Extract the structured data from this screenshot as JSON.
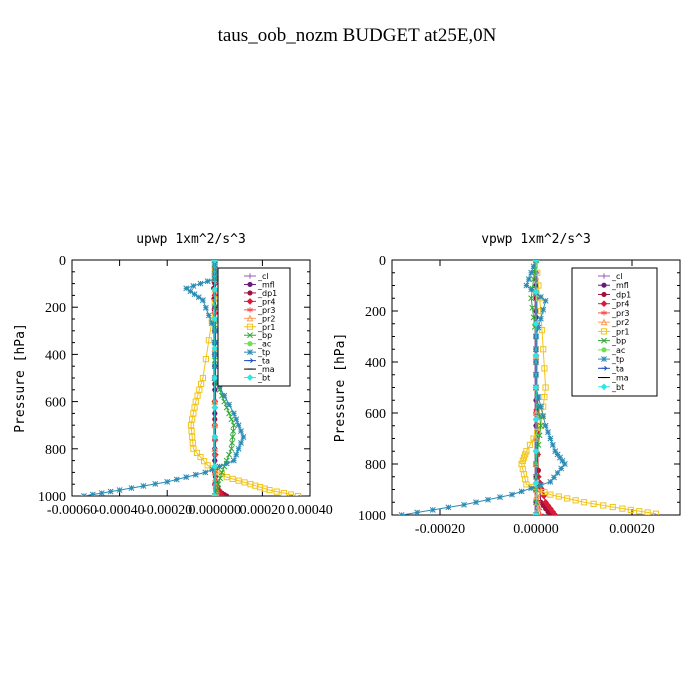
{
  "figure": {
    "title": "taus_oob_nozm  BUDGET at25E,0N"
  },
  "chart_data": [
    {
      "type": "line",
      "title": "upwp   1xm^2/s^3",
      "ylabel": "Pressure [hPa]",
      "xlabel": "",
      "ylim": [
        1000,
        0
      ],
      "xlim": [
        -0.0006,
        0.0004
      ],
      "xticks": [
        -0.0006,
        -0.0004,
        -0.0002,
        0.0,
        0.0002,
        0.0004
      ],
      "xtick_labels": [
        "-0.00060",
        "-0.00040",
        "-0.00020",
        "0.000000",
        "0.00020",
        "0.00040"
      ],
      "yticks": [
        0,
        200,
        400,
        600,
        800,
        1000
      ],
      "ytick_labels": [
        "0",
        "200",
        "400",
        "600",
        "800",
        "1000"
      ],
      "legend_position": "top-right",
      "series": [
        {
          "name": "_cl",
          "color": "#9b59b6",
          "marker": "plus",
          "x": [
            0.0,
            0.0,
            0.0,
            0.0,
            0.0,
            0.0
          ],
          "y": [
            0,
            200,
            400,
            600,
            800,
            1000
          ]
        },
        {
          "name": "_mfl",
          "color": "#6a1b7a",
          "marker": "dot",
          "x": [
            0.0,
            0.0,
            0.0,
            0.0,
            0.0,
            0.0
          ],
          "y": [
            0,
            200,
            400,
            600,
            800,
            1000
          ]
        },
        {
          "name": "_dp1",
          "color": "#a0103c",
          "marker": "dot",
          "x": [
            0.0,
            -5e-06,
            0.0,
            0.0,
            0.0,
            1e-05,
            5e-05
          ],
          "y": [
            0,
            120,
            300,
            600,
            900,
            975,
            1000
          ]
        },
        {
          "name": "_pr4",
          "color": "#d81b3a",
          "marker": "diamond",
          "x": [
            0.0,
            0.0,
            0.0,
            5e-06,
            3e-05
          ],
          "y": [
            0,
            300,
            700,
            950,
            1000
          ]
        },
        {
          "name": "_pr3",
          "color": "#ff4f4f",
          "marker": "star",
          "x": [
            0.0,
            0.0,
            0.0,
            0.0,
            1e-05
          ],
          "y": [
            0,
            300,
            700,
            950,
            1000
          ]
        },
        {
          "name": "_pr2",
          "color": "#ff9a5a",
          "marker": "triangle",
          "x": [
            0.0,
            0.0,
            0.0,
            1e-05
          ],
          "y": [
            0,
            500,
            900,
            1000
          ]
        },
        {
          "name": "_pr1",
          "color": "#f2c418",
          "marker": "square",
          "x": [
            0.0,
            0.0,
            6e-05,
            0.0,
            -5e-05,
            -8e-05,
            -0.0001,
            -9e-05,
            -3e-05,
            5e-05,
            0.00015,
            0.00023,
            0.00035
          ],
          "y": [
            0,
            80,
            120,
            180,
            500,
            600,
            700,
            800,
            870,
            920,
            950,
            975,
            1000
          ]
        },
        {
          "name": "_bp",
          "color": "#2ea836",
          "marker": "cross",
          "x": [
            0.0,
            0.0,
            8e-05,
            0.0,
            0.0,
            4e-05,
            8e-05,
            7e-05,
            3e-05,
            0.0
          ],
          "y": [
            0,
            80,
            130,
            200,
            500,
            600,
            700,
            800,
            900,
            1000
          ]
        },
        {
          "name": "_ac",
          "color": "#6ee14f",
          "marker": "dot",
          "x": [
            0.0,
            0.0,
            0.0
          ],
          "y": [
            0,
            500,
            1000
          ]
        },
        {
          "name": "_tp",
          "color": "#2a8bb5",
          "marker": "asterisk",
          "x": [
            0.0,
            0.0,
            -0.00012,
            -5e-05,
            0.0,
            0.0,
            8e-05,
            0.00012,
            8e-05,
            -4e-05,
            -0.0002,
            -0.0004,
            -0.00055
          ],
          "y": [
            0,
            80,
            120,
            170,
            300,
            500,
            650,
            750,
            850,
            900,
            940,
            975,
            1000
          ]
        },
        {
          "name": "_ta",
          "color": "#1e4fbf",
          "marker": "arrow",
          "x": [
            0.0,
            0.0,
            0.0
          ],
          "y": [
            0,
            500,
            1000
          ]
        },
        {
          "name": "_ma",
          "color": "#000000",
          "marker": "dash",
          "x": [
            0.0,
            0.0,
            0.0
          ],
          "y": [
            0,
            500,
            1000
          ]
        },
        {
          "name": "_bt",
          "color": "#2ee6e6",
          "marker": "diamond",
          "x": [
            0.0,
            0.0,
            0.0
          ],
          "y": [
            0,
            500,
            1000
          ]
        }
      ]
    },
    {
      "type": "line",
      "title": "vpwp   1xm^2/s^3",
      "ylabel": "Pressure [hPa]",
      "xlabel": "",
      "ylim": [
        1000,
        0
      ],
      "xlim": [
        -0.0003,
        0.0003
      ],
      "xticks": [
        -0.0002,
        0.0,
        0.0002
      ],
      "xtick_labels": [
        "-0.00020",
        "0.00000",
        "0.00020"
      ],
      "yticks": [
        0,
        200,
        400,
        600,
        800,
        1000
      ],
      "ytick_labels": [
        "0",
        "200",
        "400",
        "600",
        "800",
        "1000"
      ],
      "legend_position": "top-right",
      "series": [
        {
          "name": "_cl",
          "color": "#9b59b6",
          "marker": "plus",
          "x": [
            0.0,
            0.0,
            0.0,
            0.0,
            0.0,
            0.0
          ],
          "y": [
            0,
            200,
            400,
            600,
            800,
            1000
          ]
        },
        {
          "name": "_mfl",
          "color": "#6a1b7a",
          "marker": "dot",
          "x": [
            0.0,
            0.0,
            0.0,
            0.0,
            0.0,
            0.0
          ],
          "y": [
            0,
            200,
            400,
            600,
            800,
            1000
          ]
        },
        {
          "name": "_dp1",
          "color": "#a0103c",
          "marker": "dot",
          "x": [
            0.0,
            0.0,
            0.0,
            1e-05,
            3e-05
          ],
          "y": [
            0,
            300,
            700,
            950,
            1000
          ]
        },
        {
          "name": "_pr4",
          "color": "#d81b3a",
          "marker": "diamond",
          "x": [
            0.0,
            0.0,
            5e-06,
            2e-05,
            4e-05
          ],
          "y": [
            0,
            500,
            850,
            950,
            1000
          ]
        },
        {
          "name": "_pr3",
          "color": "#ff4f4f",
          "marker": "star",
          "x": [
            0.0,
            0.0,
            0.0,
            1e-05
          ],
          "y": [
            0,
            500,
            900,
            1000
          ]
        },
        {
          "name": "_pr2",
          "color": "#ff9a5a",
          "marker": "triangle",
          "x": [
            0.0,
            0.0,
            0.0,
            5e-06
          ],
          "y": [
            0,
            500,
            900,
            1000
          ]
        },
        {
          "name": "_pr1",
          "color": "#f2c418",
          "marker": "square",
          "x": [
            0.0,
            1e-05,
            2e-05,
            1e-05,
            -2e-05,
            -3e-05,
            -2e-05,
            3e-05,
            0.0001,
            0.00018,
            0.00025
          ],
          "y": [
            0,
            200,
            500,
            650,
            750,
            800,
            880,
            920,
            950,
            975,
            995
          ]
        },
        {
          "name": "_bp",
          "color": "#2ea836",
          "marker": "cross",
          "x": [
            0.0,
            -1e-05,
            0.0,
            0.0,
            1e-05,
            0.0,
            0.0
          ],
          "y": [
            0,
            150,
            300,
            500,
            650,
            800,
            1000
          ]
        },
        {
          "name": "_ac",
          "color": "#6ee14f",
          "marker": "dot",
          "x": [
            0.0,
            0.0,
            0.0
          ],
          "y": [
            0,
            500,
            1000
          ]
        },
        {
          "name": "_tp",
          "color": "#2a8bb5",
          "marker": "asterisk",
          "x": [
            0.0,
            -2e-05,
            2e-05,
            0.0,
            0.0,
            2e-05,
            4e-05,
            6e-05,
            3e-05,
            -5e-05,
            -0.00015,
            -0.00028
          ],
          "y": [
            0,
            100,
            160,
            300,
            500,
            650,
            750,
            800,
            870,
            920,
            960,
            1000
          ]
        },
        {
          "name": "_ta",
          "color": "#1e4fbf",
          "marker": "arrow",
          "x": [
            0.0,
            0.0,
            0.0
          ],
          "y": [
            0,
            500,
            1000
          ]
        },
        {
          "name": "_ma",
          "color": "#000000",
          "marker": "dash",
          "x": [
            0.0,
            0.0,
            0.0
          ],
          "y": [
            0,
            500,
            1000
          ]
        },
        {
          "name": "_bt",
          "color": "#2ee6e6",
          "marker": "diamond",
          "x": [
            0.0,
            0.0,
            0.0
          ],
          "y": [
            0,
            500,
            1000
          ]
        }
      ]
    }
  ]
}
